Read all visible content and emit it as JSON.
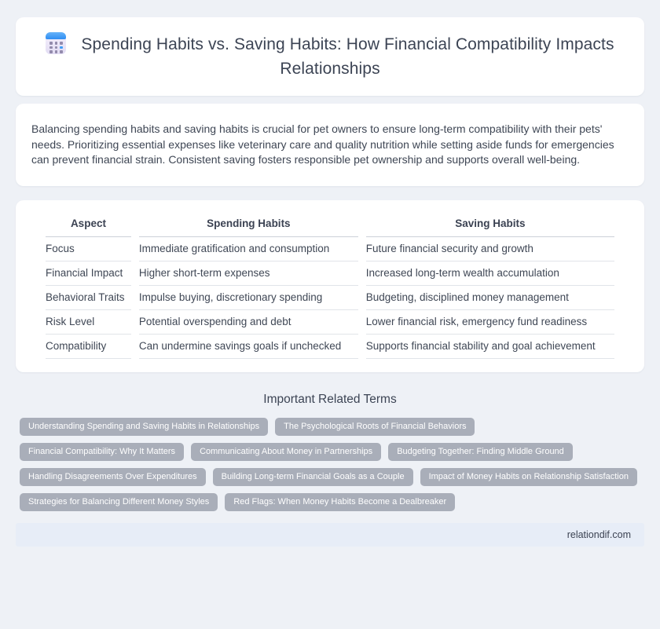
{
  "header": {
    "icon": "calendar-icon",
    "title": "Spending Habits vs. Saving Habits: How Financial Compatibility Impacts Relationships"
  },
  "intro": {
    "text": "Balancing spending habits and saving habits is crucial for pet owners to ensure long-term compatibility with their pets' needs. Prioritizing essential expenses like veterinary care and quality nutrition while setting aside funds for emergencies can prevent financial strain. Consistent saving fosters responsible pet ownership and supports overall well-being."
  },
  "comparison_table": {
    "headers": [
      "Aspect",
      "Spending Habits",
      "Saving Habits"
    ],
    "rows": [
      [
        "Focus",
        "Immediate gratification and consumption",
        "Future financial security and growth"
      ],
      [
        "Financial Impact",
        "Higher short-term expenses",
        "Increased long-term wealth accumulation"
      ],
      [
        "Behavioral Traits",
        "Impulse buying, discretionary spending",
        "Budgeting, disciplined money management"
      ],
      [
        "Risk Level",
        "Potential overspending and debt",
        "Lower financial risk, emergency fund readiness"
      ],
      [
        "Compatibility",
        "Can undermine savings goals if unchecked",
        "Supports financial stability and goal achievement"
      ]
    ]
  },
  "related_terms": {
    "heading": "Important Related Terms",
    "terms": [
      "Understanding Spending and Saving Habits in Relationships",
      "The Psychological Roots of Financial Behaviors",
      "Financial Compatibility: Why It Matters",
      "Communicating About Money in Partnerships",
      "Budgeting Together: Finding Middle Ground",
      "Handling Disagreements Over Expenditures",
      "Building Long-term Financial Goals as a Couple",
      "Impact of Money Habits on Relationship Satisfaction",
      "Strategies for Balancing Different Money Styles",
      "Red Flags: When Money Habits Become a Dealbreaker"
    ]
  },
  "footer": {
    "site_label": "relationdif.com"
  },
  "colors": {
    "page_bg": "#eef1f6",
    "card_bg": "#ffffff",
    "heading_text": "#3c4454",
    "body_text": "#3f4755",
    "pill_bg": "#a9aeb9",
    "pill_text": "#ffffff",
    "footer_bg": "#e7edf7",
    "divider": "#e1e4e9",
    "icon_blue": "#3f9df6"
  }
}
